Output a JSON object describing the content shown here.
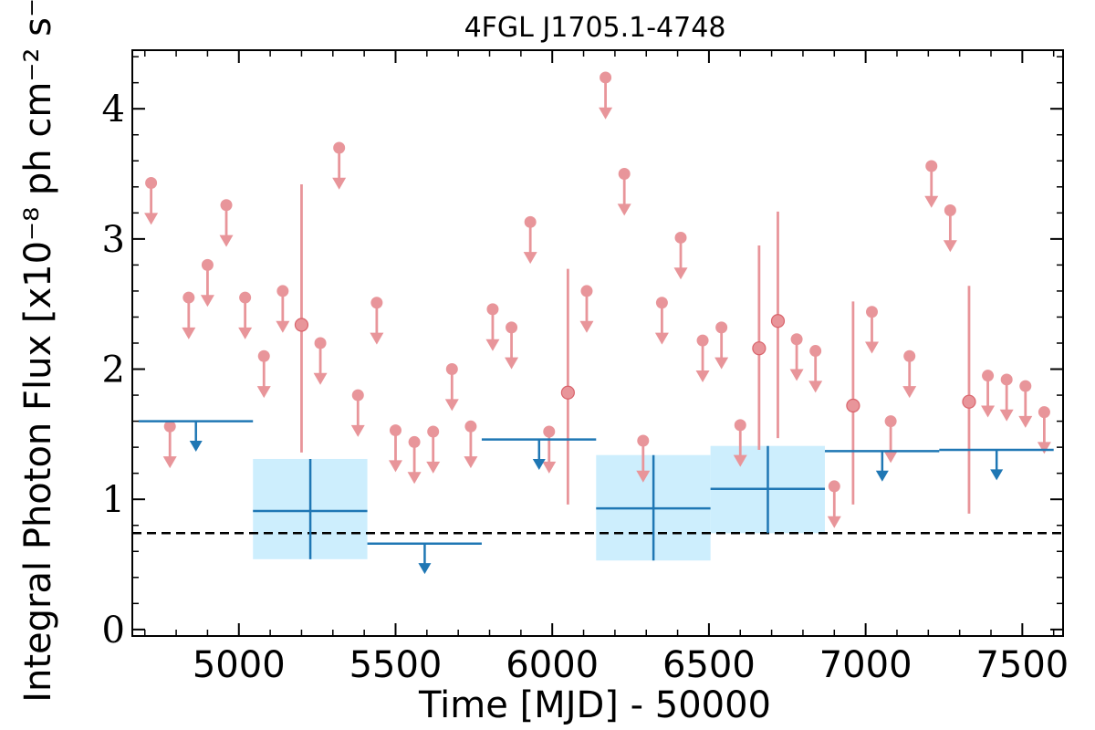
{
  "chart_data": {
    "type": "scatter",
    "title": "4FGL J1705.1-4748",
    "xlabel": "Time [MJD] - 50000",
    "ylabel": "Integral Photon Flux [x10⁻⁸ ph cm⁻² s⁻¹]",
    "xlim": [
      4660,
      7630
    ],
    "ylim": [
      -0.05,
      4.45
    ],
    "x_ticks": [
      5000,
      5500,
      6000,
      6500,
      7000,
      7500
    ],
    "x_tick_labels": [
      "5000",
      "5500",
      "6000",
      "6500",
      "7000",
      "7500"
    ],
    "y_ticks": [
      0,
      1,
      2,
      3,
      4
    ],
    "y_tick_labels": [
      "0",
      "1",
      "2",
      "3",
      "4"
    ],
    "grid": false,
    "colors": {
      "short_bins": "#e8959a",
      "long_bins": "#1f77b4",
      "long_bins_band": "#cdeefd",
      "mean_line": "#000000"
    },
    "reference_line": {
      "y": 0.74,
      "style": "dashed"
    },
    "series": [
      {
        "bin_width_days": 60,
        "detections": [
          {
            "x": 5200,
            "y": 2.34,
            "err": [
              1.36,
              3.42
            ]
          },
          {
            "x": 6050,
            "y": 1.82,
            "err": [
              0.96,
              2.77
            ]
          },
          {
            "x": 6660,
            "y": 2.16,
            "err": [
              1.38,
              2.95
            ]
          },
          {
            "x": 6720,
            "y": 2.37,
            "err": [
              1.47,
              3.21
            ]
          },
          {
            "x": 6960,
            "y": 1.72,
            "err": [
              0.96,
              2.52
            ]
          },
          {
            "x": 7330,
            "y": 1.75,
            "err": [
              0.89,
              2.64
            ]
          }
        ],
        "upper_limits": [
          {
            "x": 4720,
            "y": 3.43
          },
          {
            "x": 4780,
            "y": 1.56
          },
          {
            "x": 4840,
            "y": 2.55
          },
          {
            "x": 4900,
            "y": 2.8
          },
          {
            "x": 4960,
            "y": 3.26
          },
          {
            "x": 5020,
            "y": 2.55
          },
          {
            "x": 5080,
            "y": 2.1
          },
          {
            "x": 5140,
            "y": 2.6
          },
          {
            "x": 5260,
            "y": 2.2
          },
          {
            "x": 5320,
            "y": 3.7
          },
          {
            "x": 5380,
            "y": 1.8
          },
          {
            "x": 5440,
            "y": 2.51
          },
          {
            "x": 5500,
            "y": 1.53
          },
          {
            "x": 5560,
            "y": 1.44
          },
          {
            "x": 5620,
            "y": 1.52
          },
          {
            "x": 5680,
            "y": 2.0
          },
          {
            "x": 5740,
            "y": 1.56
          },
          {
            "x": 5810,
            "y": 2.46
          },
          {
            "x": 5870,
            "y": 2.32
          },
          {
            "x": 5930,
            "y": 3.13
          },
          {
            "x": 5990,
            "y": 1.52
          },
          {
            "x": 6110,
            "y": 2.6
          },
          {
            "x": 6170,
            "y": 4.24
          },
          {
            "x": 6230,
            "y": 3.5
          },
          {
            "x": 6290,
            "y": 1.45
          },
          {
            "x": 6350,
            "y": 2.51
          },
          {
            "x": 6410,
            "y": 3.01
          },
          {
            "x": 6480,
            "y": 2.22
          },
          {
            "x": 6540,
            "y": 2.32
          },
          {
            "x": 6600,
            "y": 1.57
          },
          {
            "x": 6780,
            "y": 2.23
          },
          {
            "x": 6840,
            "y": 2.14
          },
          {
            "x": 6900,
            "y": 1.1
          },
          {
            "x": 7020,
            "y": 2.44
          },
          {
            "x": 7080,
            "y": 1.6
          },
          {
            "x": 7140,
            "y": 2.1
          },
          {
            "x": 7210,
            "y": 3.56
          },
          {
            "x": 7270,
            "y": 3.22
          },
          {
            "x": 7390,
            "y": 1.95
          },
          {
            "x": 7450,
            "y": 1.92
          },
          {
            "x": 7510,
            "y": 1.87
          },
          {
            "x": 7570,
            "y": 1.67
          }
        ]
      },
      {
        "bin_width_days": 365,
        "detections": [
          {
            "x": 5228,
            "y": 0.91,
            "xerr": [
              5045,
              5410
            ],
            "err": [
              0.54,
              1.31
            ]
          },
          {
            "x": 6323,
            "y": 0.93,
            "xerr": [
              6140,
              6505
            ],
            "err": [
              0.53,
              1.34
            ]
          },
          {
            "x": 6688,
            "y": 1.08,
            "xerr": [
              6505,
              6870
            ],
            "err": [
              0.74,
              1.41
            ]
          }
        ],
        "upper_limits": [
          {
            "x": 4863,
            "y": 1.6,
            "xerr": [
              4680,
              5045
            ]
          },
          {
            "x": 5593,
            "y": 0.66,
            "xerr": [
              5410,
              5775
            ]
          },
          {
            "x": 5958,
            "y": 1.46,
            "xerr": [
              5775,
              6140
            ]
          },
          {
            "x": 7053,
            "y": 1.37,
            "xerr": [
              6870,
              7235
            ]
          },
          {
            "x": 7418,
            "y": 1.38,
            "xerr": [
              7235,
              7600
            ]
          }
        ]
      }
    ]
  }
}
